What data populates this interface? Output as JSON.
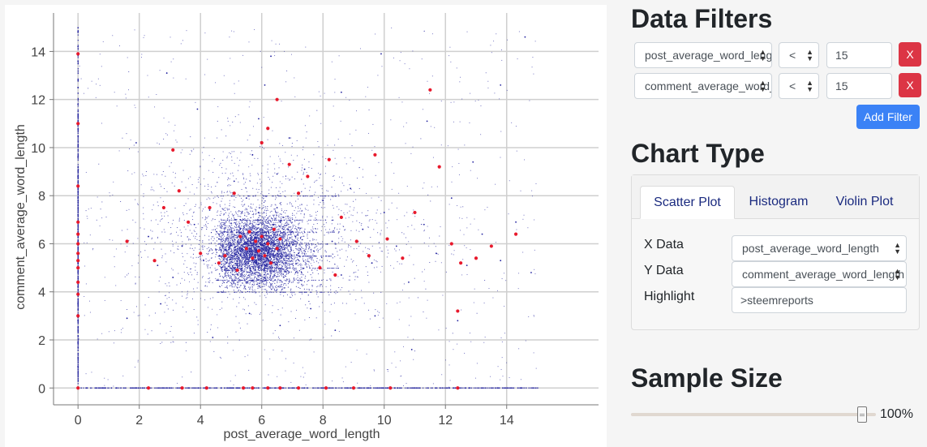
{
  "filters": {
    "title": "Data Filters",
    "rows": [
      {
        "field": "post_average_word_length",
        "op": "<",
        "value": "15",
        "remove": "X"
      },
      {
        "field": "comment_average_word_length",
        "op": "<",
        "value": "15",
        "remove": "X"
      }
    ],
    "add_label": "Add Filter"
  },
  "chart_type": {
    "title": "Chart Type",
    "tabs": [
      "Scatter Plot",
      "Histogram",
      "Violin Plot"
    ],
    "active_tab": "Scatter Plot",
    "x_label": "X Data",
    "x_value": "post_average_word_length",
    "y_label": "Y Data",
    "y_value": "comment_average_word_length",
    "highlight_label": "Highlight",
    "highlight_value": ">steemreports"
  },
  "sample": {
    "title": "Sample Size",
    "value_text": "100%",
    "fraction": 1.0
  },
  "colors": {
    "points": "#1f1f9e",
    "highlight": "#e8192c",
    "danger": "#dc3545",
    "primary": "#3b82f6"
  },
  "chart_data": {
    "type": "scatter",
    "xlabel": "post_average_word_length",
    "ylabel": "comment_average_word_length",
    "xlim": [
      -0.8,
      17.0
    ],
    "ylim": [
      -0.7,
      15.6
    ],
    "xticks": [
      0,
      2,
      4,
      6,
      8,
      10,
      12,
      14
    ],
    "yticks": [
      0,
      2,
      4,
      6,
      8,
      10,
      12,
      14
    ],
    "grid": true,
    "series": [
      {
        "role": "background",
        "color": "#1f1f9e",
        "cluster_center": [
          6.0,
          5.9
        ],
        "points": [
          [
            0,
            14.8
          ],
          [
            0,
            14.2
          ],
          [
            0,
            13.6
          ],
          [
            0,
            12.5
          ],
          [
            0,
            11.8
          ],
          [
            0,
            10.9
          ],
          [
            0,
            9.6
          ],
          [
            0,
            8.8
          ],
          [
            0,
            7.9
          ],
          [
            0,
            7.2
          ],
          [
            0,
            6.6
          ],
          [
            0,
            6.1
          ],
          [
            0,
            5.7
          ],
          [
            0,
            5.2
          ],
          [
            0,
            4.8
          ],
          [
            0,
            4.2
          ],
          [
            0,
            3.5
          ],
          [
            0,
            2.8
          ],
          [
            0,
            1.9
          ],
          [
            0,
            0.9
          ],
          [
            0.3,
            0
          ],
          [
            0.8,
            0
          ],
          [
            1.4,
            0
          ],
          [
            2.1,
            0
          ],
          [
            2.9,
            0
          ],
          [
            3.6,
            0
          ],
          [
            4.3,
            0
          ],
          [
            5.2,
            0
          ],
          [
            5.9,
            0
          ],
          [
            6.6,
            0
          ],
          [
            7.4,
            0
          ],
          [
            8.3,
            0
          ],
          [
            9.2,
            0
          ],
          [
            10.1,
            0
          ],
          [
            11.0,
            0
          ],
          [
            11.9,
            0
          ],
          [
            12.8,
            0
          ],
          [
            13.7,
            0
          ],
          [
            14.5,
            0
          ],
          [
            2.3,
            6.3
          ],
          [
            2.6,
            5.1
          ],
          [
            3.1,
            4.6
          ],
          [
            3.4,
            5.9
          ],
          [
            3.8,
            6.8
          ],
          [
            4.1,
            5.3
          ],
          [
            4.3,
            7.4
          ],
          [
            4.6,
            6.2
          ],
          [
            4.9,
            4.9
          ],
          [
            5.1,
            8.6
          ],
          [
            5.3,
            6.6
          ],
          [
            5.5,
            7.9
          ],
          [
            5.7,
            9.7
          ],
          [
            5.9,
            11.2
          ],
          [
            6.1,
            12.6
          ],
          [
            6.3,
            13.8
          ],
          [
            6.5,
            8.9
          ],
          [
            6.7,
            7.1
          ],
          [
            6.9,
            10.4
          ],
          [
            7.1,
            6.3
          ],
          [
            7.4,
            9.1
          ],
          [
            7.7,
            5.7
          ],
          [
            8.0,
            7.8
          ],
          [
            8.3,
            6.1
          ],
          [
            8.6,
            4.7
          ],
          [
            8.9,
            8.3
          ],
          [
            9.3,
            6.6
          ],
          [
            9.6,
            5.2
          ],
          [
            10.0,
            7.3
          ],
          [
            10.4,
            5.9
          ],
          [
            10.8,
            4.4
          ],
          [
            11.3,
            6.8
          ],
          [
            11.7,
            5.6
          ],
          [
            12.2,
            7.9
          ],
          [
            12.7,
            5.1
          ],
          [
            13.2,
            6.4
          ],
          [
            13.8,
            5.3
          ],
          [
            14.3,
            6.9
          ],
          [
            14.8,
            4.8
          ],
          [
            1.6,
            2.9
          ],
          [
            2.7,
            3.5
          ],
          [
            4.4,
            2.1
          ],
          [
            5.6,
            3.1
          ],
          [
            6.6,
            2.6
          ],
          [
            7.6,
            3.3
          ],
          [
            8.4,
            2.4
          ],
          [
            9.7,
            3.0
          ],
          [
            10.9,
            1.6
          ],
          [
            12.4,
            2.8
          ],
          [
            1.9,
            10.2
          ],
          [
            2.9,
            13.1
          ],
          [
            3.9,
            11.6
          ],
          [
            8.6,
            12.3
          ],
          [
            9.9,
            13.9
          ],
          [
            11.4,
            11.1
          ],
          [
            12.9,
            9.4
          ],
          [
            13.8,
            12.6
          ],
          [
            14.6,
            14.6
          ],
          [
            4.8,
            5.5
          ],
          [
            5.0,
            6.0
          ],
          [
            5.2,
            5.1
          ],
          [
            5.4,
            6.4
          ],
          [
            5.6,
            5.7
          ],
          [
            5.8,
            4.9
          ],
          [
            6.0,
            6.2
          ],
          [
            6.2,
            5.4
          ],
          [
            6.4,
            6.8
          ],
          [
            6.6,
            5.9
          ],
          [
            6.8,
            5.2
          ],
          [
            7.0,
            6.5
          ],
          [
            7.2,
            5.6
          ],
          [
            5.3,
            7.0
          ],
          [
            5.9,
            7.3
          ],
          [
            6.5,
            7.5
          ],
          [
            6.1,
            4.6
          ],
          [
            5.5,
            4.4
          ],
          [
            7.3,
            4.8
          ],
          [
            4.6,
            6.4
          ]
        ]
      },
      {
        "role": "highlight",
        "name": ">steemreports",
        "color": "#e8192c",
        "points": [
          [
            0,
            13.9
          ],
          [
            0,
            11.0
          ],
          [
            0,
            8.4
          ],
          [
            0,
            6.9
          ],
          [
            0,
            6.4
          ],
          [
            0,
            6.0
          ],
          [
            0,
            5.6
          ],
          [
            0,
            5.3
          ],
          [
            0,
            5.0
          ],
          [
            0,
            4.4
          ],
          [
            0,
            3.9
          ],
          [
            0,
            3.0
          ],
          [
            0,
            0
          ],
          [
            2.3,
            0
          ],
          [
            3.4,
            0
          ],
          [
            4.2,
            0
          ],
          [
            5.4,
            0
          ],
          [
            5.7,
            0
          ],
          [
            6.2,
            0
          ],
          [
            6.6,
            0
          ],
          [
            7.2,
            0
          ],
          [
            8.1,
            0
          ],
          [
            9.0,
            0
          ],
          [
            10.2,
            0
          ],
          [
            12.4,
            0
          ],
          [
            1.6,
            6.1
          ],
          [
            2.5,
            5.3
          ],
          [
            2.8,
            7.5
          ],
          [
            3.1,
            9.9
          ],
          [
            3.3,
            8.2
          ],
          [
            3.6,
            6.9
          ],
          [
            4.0,
            5.6
          ],
          [
            4.3,
            7.5
          ],
          [
            4.6,
            5.2
          ],
          [
            5.1,
            8.1
          ],
          [
            5.3,
            6.3
          ],
          [
            5.5,
            5.8
          ],
          [
            5.6,
            6.5
          ],
          [
            5.7,
            5.4
          ],
          [
            5.8,
            6.1
          ],
          [
            5.9,
            5.7
          ],
          [
            6.0,
            6.3
          ],
          [
            6.1,
            5.5
          ],
          [
            6.2,
            6.0
          ],
          [
            6.3,
            5.2
          ],
          [
            6.4,
            6.6
          ],
          [
            6.5,
            5.8
          ],
          [
            6.6,
            6.2
          ],
          [
            6.0,
            10.2
          ],
          [
            6.2,
            10.8
          ],
          [
            6.5,
            12.0
          ],
          [
            6.9,
            9.3
          ],
          [
            7.2,
            8.1
          ],
          [
            7.5,
            8.8
          ],
          [
            8.2,
            9.5
          ],
          [
            8.6,
            7.1
          ],
          [
            9.1,
            6.1
          ],
          [
            9.7,
            9.7
          ],
          [
            10.1,
            6.2
          ],
          [
            10.6,
            5.4
          ],
          [
            11.0,
            7.3
          ],
          [
            11.5,
            12.4
          ],
          [
            11.8,
            9.2
          ],
          [
            12.2,
            6.0
          ],
          [
            12.4,
            3.2
          ],
          [
            12.5,
            5.2
          ],
          [
            13.0,
            5.4
          ],
          [
            13.5,
            5.9
          ],
          [
            14.3,
            6.4
          ],
          [
            7.9,
            5.0
          ],
          [
            8.4,
            4.7
          ],
          [
            9.5,
            5.5
          ],
          [
            4.8,
            5.5
          ],
          [
            5.2,
            4.9
          ]
        ]
      }
    ]
  }
}
